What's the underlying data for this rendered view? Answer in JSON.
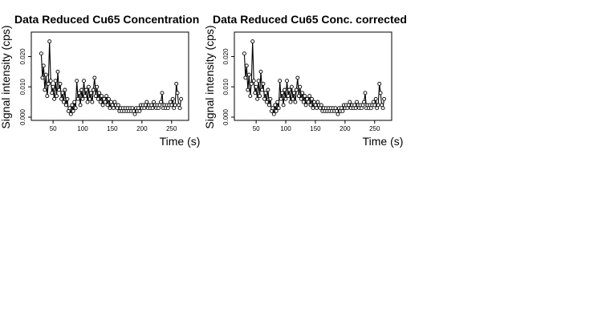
{
  "chart_data": [
    {
      "type": "scatter",
      "title": "Data Reduced Cu65 Concentration",
      "xlabel": "Time (s)",
      "ylabel": "Signal intensity (cps)",
      "xlim": [
        20,
        272
      ],
      "ylim": [
        0,
        0.027
      ],
      "xticks": [
        50,
        100,
        150,
        200,
        250
      ],
      "xtick_labels": [
        "50",
        "100",
        "150",
        "200",
        "250"
      ],
      "yticks": [
        0.0,
        0.01,
        0.02
      ],
      "ytick_labels": [
        "0.000",
        "0.010",
        "0.020"
      ],
      "series": [
        {
          "name": "Cu65",
          "x": [
            30,
            32,
            34,
            36,
            38,
            40,
            42,
            44,
            46,
            48,
            50,
            52,
            54,
            56,
            58,
            60,
            62,
            64,
            66,
            68,
            70,
            72,
            74,
            76,
            78,
            80,
            82,
            84,
            86,
            88,
            90,
            92,
            94,
            96,
            98,
            100,
            102,
            104,
            106,
            108,
            110,
            112,
            114,
            116,
            118,
            120,
            122,
            124,
            126,
            128,
            130,
            132,
            134,
            136,
            138,
            140,
            142,
            144,
            146,
            148,
            150,
            152,
            154,
            156,
            158,
            160,
            162,
            164,
            166,
            168,
            170,
            172,
            174,
            176,
            178,
            180,
            182,
            184,
            186,
            188,
            190,
            192,
            194,
            196,
            198,
            200,
            202,
            204,
            206,
            208,
            210,
            212,
            214,
            216,
            218,
            220,
            222,
            224,
            226,
            228,
            230,
            232,
            234,
            236,
            238,
            240,
            242,
            244,
            246,
            248,
            250,
            252,
            254,
            256,
            258,
            260,
            262,
            264,
            266
          ],
          "values": [
            0.021,
            0.013,
            0.017,
            0.009,
            0.014,
            0.007,
            0.011,
            0.025,
            0.012,
            0.008,
            0.01,
            0.006,
            0.012,
            0.007,
            0.015,
            0.009,
            0.011,
            0.006,
            0.008,
            0.005,
            0.009,
            0.004,
            0.006,
            0.002,
            0.003,
            0.001,
            0.004,
            0.002,
            0.005,
            0.003,
            0.012,
            0.006,
            0.008,
            0.004,
            0.009,
            0.006,
            0.012,
            0.007,
            0.009,
            0.005,
            0.01,
            0.006,
            0.008,
            0.005,
            0.009,
            0.013,
            0.007,
            0.01,
            0.006,
            0.008,
            0.005,
            0.007,
            0.004,
            0.006,
            0.005,
            0.007,
            0.004,
            0.006,
            0.003,
            0.005,
            0.004,
            0.003,
            0.005,
            0.004,
            0.003,
            0.004,
            0.002,
            0.003,
            0.002,
            0.003,
            0.002,
            0.003,
            0.002,
            0.003,
            0.002,
            0.003,
            0.002,
            0.003,
            0.002,
            0.001,
            0.003,
            0.002,
            0.003,
            0.002,
            0.004,
            0.003,
            0.004,
            0.003,
            0.004,
            0.005,
            0.003,
            0.004,
            0.003,
            0.004,
            0.003,
            0.005,
            0.004,
            0.003,
            0.004,
            0.003,
            0.004,
            0.005,
            0.008,
            0.003,
            0.004,
            0.003,
            0.004,
            0.003,
            0.004,
            0.005,
            0.004,
            0.006,
            0.003,
            0.004,
            0.011,
            0.008,
            0.004,
            0.003,
            0.006
          ]
        }
      ]
    },
    {
      "type": "scatter",
      "title": "Data Reduced Cu65 Conc. corrected",
      "xlabel": "Time (s)",
      "ylabel": "Signal intensity (cps)",
      "xlim": [
        20,
        272
      ],
      "ylim": [
        0,
        0.027
      ],
      "xticks": [
        50,
        100,
        150,
        200,
        250
      ],
      "xtick_labels": [
        "50",
        "100",
        "150",
        "200",
        "250"
      ],
      "yticks": [
        0.0,
        0.01,
        0.02
      ],
      "ytick_labels": [
        "0.000",
        "0.010",
        "0.020"
      ],
      "series": [
        {
          "name": "Cu65",
          "x": [
            30,
            32,
            34,
            36,
            38,
            40,
            42,
            44,
            46,
            48,
            50,
            52,
            54,
            56,
            58,
            60,
            62,
            64,
            66,
            68,
            70,
            72,
            74,
            76,
            78,
            80,
            82,
            84,
            86,
            88,
            90,
            92,
            94,
            96,
            98,
            100,
            102,
            104,
            106,
            108,
            110,
            112,
            114,
            116,
            118,
            120,
            122,
            124,
            126,
            128,
            130,
            132,
            134,
            136,
            138,
            140,
            142,
            144,
            146,
            148,
            150,
            152,
            154,
            156,
            158,
            160,
            162,
            164,
            166,
            168,
            170,
            172,
            174,
            176,
            178,
            180,
            182,
            184,
            186,
            188,
            190,
            192,
            194,
            196,
            198,
            200,
            202,
            204,
            206,
            208,
            210,
            212,
            214,
            216,
            218,
            220,
            222,
            224,
            226,
            228,
            230,
            232,
            234,
            236,
            238,
            240,
            242,
            244,
            246,
            248,
            250,
            252,
            254,
            256,
            258,
            260,
            262,
            264,
            266
          ],
          "values": [
            0.021,
            0.013,
            0.017,
            0.009,
            0.014,
            0.007,
            0.011,
            0.025,
            0.012,
            0.008,
            0.01,
            0.006,
            0.012,
            0.007,
            0.015,
            0.009,
            0.011,
            0.006,
            0.008,
            0.005,
            0.009,
            0.004,
            0.006,
            0.002,
            0.003,
            0.001,
            0.004,
            0.002,
            0.005,
            0.003,
            0.012,
            0.006,
            0.008,
            0.004,
            0.009,
            0.006,
            0.012,
            0.007,
            0.009,
            0.005,
            0.01,
            0.006,
            0.008,
            0.005,
            0.009,
            0.013,
            0.007,
            0.01,
            0.006,
            0.008,
            0.005,
            0.007,
            0.004,
            0.006,
            0.005,
            0.007,
            0.004,
            0.006,
            0.003,
            0.005,
            0.004,
            0.003,
            0.005,
            0.004,
            0.003,
            0.004,
            0.002,
            0.003,
            0.002,
            0.003,
            0.002,
            0.003,
            0.002,
            0.003,
            0.002,
            0.003,
            0.002,
            0.003,
            0.002,
            0.001,
            0.003,
            0.002,
            0.003,
            0.002,
            0.004,
            0.003,
            0.004,
            0.003,
            0.004,
            0.005,
            0.003,
            0.004,
            0.003,
            0.004,
            0.003,
            0.005,
            0.004,
            0.003,
            0.004,
            0.003,
            0.004,
            0.005,
            0.008,
            0.003,
            0.004,
            0.003,
            0.004,
            0.003,
            0.004,
            0.005,
            0.004,
            0.006,
            0.003,
            0.004,
            0.011,
            0.008,
            0.004,
            0.003,
            0.006
          ]
        }
      ]
    }
  ]
}
